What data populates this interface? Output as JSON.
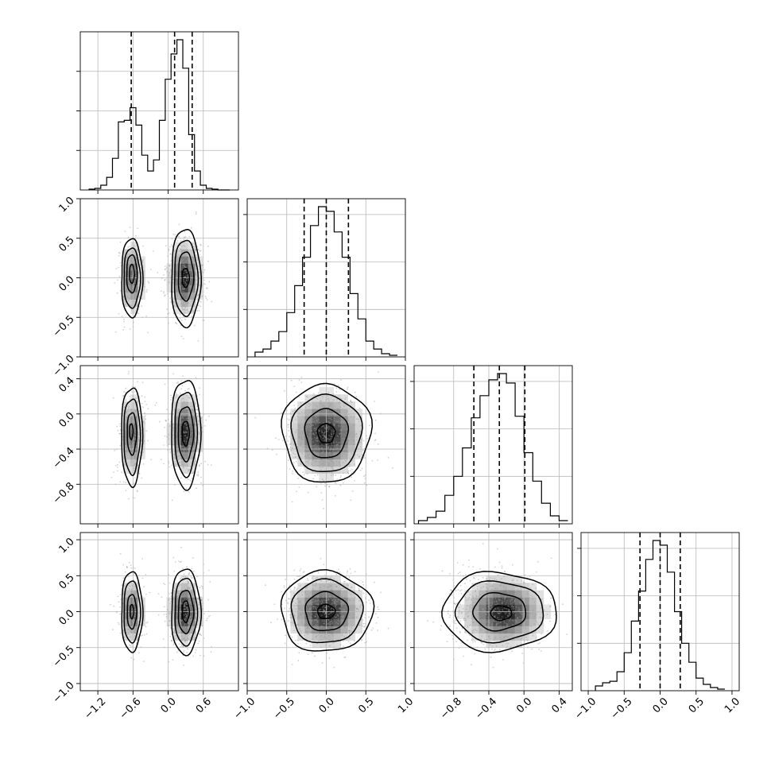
{
  "chart_data": {
    "type": "corner",
    "parameters": 4,
    "ranges": [
      [
        -1.5,
        1.2
      ],
      [
        -1.0,
        1.0
      ],
      [
        -1.25,
        0.55
      ],
      [
        -1.1,
        1.1
      ]
    ],
    "tick_values": [
      [
        -1.2,
        -0.6,
        0.0,
        0.6
      ],
      [
        -1.0,
        -0.5,
        0.0,
        0.5,
        1.0
      ],
      [
        -0.8,
        -0.4,
        0.0,
        0.4
      ],
      [
        -1.0,
        -0.5,
        0.0,
        0.5,
        1.0
      ]
    ],
    "tick_labels": [
      [
        "−1.2",
        "−0.6",
        "0.0",
        "0.6"
      ],
      [
        "−1.0",
        "−0.5",
        "0.0",
        "0.5",
        "1.0"
      ],
      [
        "−0.8",
        "−0.4",
        "0.0",
        "0.4"
      ],
      [
        "−1.0",
        "−0.5",
        "0.0",
        "0.5",
        "1.0"
      ]
    ],
    "histograms": [
      {
        "bin_edges": [
          -1.35,
          -1.25,
          -1.15,
          -1.05,
          -0.95,
          -0.85,
          -0.75,
          -0.65,
          -0.55,
          -0.45,
          -0.35,
          -0.25,
          -0.15,
          -0.05,
          0.05,
          0.15,
          0.25,
          0.35,
          0.45,
          0.55,
          0.65,
          0.75,
          0.85,
          0.95,
          1.05
        ],
        "counts": [
          0.005,
          0.01,
          0.03,
          0.08,
          0.2,
          0.43,
          0.44,
          0.52,
          0.41,
          0.22,
          0.12,
          0.19,
          0.44,
          0.7,
          0.86,
          0.95,
          0.77,
          0.35,
          0.12,
          0.03,
          0.01,
          0.005,
          0.0,
          0.0
        ],
        "quantiles": [
          -0.63,
          0.11,
          0.41
        ],
        "y_ticks": [
          0.25,
          0.5,
          0.75
        ]
      },
      {
        "bin_edges": [
          -0.9,
          -0.8,
          -0.7,
          -0.6,
          -0.5,
          -0.4,
          -0.3,
          -0.2,
          -0.1,
          0.0,
          0.1,
          0.2,
          0.3,
          0.4,
          0.5,
          0.6,
          0.7,
          0.8,
          0.9
        ],
        "counts": [
          0.03,
          0.05,
          0.1,
          0.16,
          0.28,
          0.45,
          0.63,
          0.83,
          0.95,
          0.92,
          0.79,
          0.63,
          0.4,
          0.24,
          0.1,
          0.05,
          0.02,
          0.01
        ],
        "quantiles": [
          -0.28,
          0.0,
          0.28
        ],
        "y_ticks": [
          0.3,
          0.6,
          0.9
        ]
      },
      {
        "bin_edges": [
          -1.2,
          -1.1,
          -1.0,
          -0.9,
          -0.8,
          -0.7,
          -0.6,
          -0.5,
          -0.4,
          -0.3,
          -0.2,
          -0.1,
          0.0,
          0.1,
          0.2,
          0.3,
          0.4,
          0.5
        ],
        "counts": [
          0.02,
          0.04,
          0.08,
          0.18,
          0.3,
          0.48,
          0.67,
          0.81,
          0.91,
          0.95,
          0.89,
          0.68,
          0.45,
          0.27,
          0.13,
          0.05,
          0.02
        ],
        "quantiles": [
          -0.57,
          -0.28,
          0.01
        ],
        "y_ticks": [
          0.3,
          0.6,
          0.9
        ]
      },
      {
        "bin_edges": [
          -0.9,
          -0.8,
          -0.7,
          -0.6,
          -0.5,
          -0.4,
          -0.3,
          -0.2,
          -0.1,
          0.0,
          0.1,
          0.2,
          0.3,
          0.4,
          0.5,
          0.6,
          0.7,
          0.8,
          0.9
        ],
        "counts": [
          0.03,
          0.05,
          0.06,
          0.12,
          0.24,
          0.44,
          0.63,
          0.83,
          0.95,
          0.92,
          0.75,
          0.5,
          0.3,
          0.18,
          0.08,
          0.04,
          0.02,
          0.01
        ],
        "quantiles": [
          -0.28,
          0.0,
          0.28
        ],
        "y_ticks": [
          0.3,
          0.6,
          0.9
        ]
      }
    ],
    "mixture": [
      [
        {
          "w": 0.36,
          "mu": -0.62,
          "sd": 0.09
        },
        {
          "w": 0.64,
          "mu": 0.29,
          "sd": 0.12
        }
      ],
      [
        {
          "w": 1,
          "mu": 0.0,
          "sd": 0.22
        }
      ],
      [
        {
          "w": 0.36,
          "mu": -0.25,
          "sd": 0.22
        },
        {
          "w": 0.64,
          "mu": -0.22,
          "sd": 0.22
        }
      ],
      [
        {
          "w": 1,
          "mu": 0.0,
          "sd": 0.22
        }
      ]
    ],
    "panels": [
      {
        "row": 1,
        "col": 0,
        "contours": [
          [
            [
              -0.62,
              0.0,
              0.18,
              0.5
            ],
            [
              -0.62,
              0.0,
              0.14,
              0.38
            ],
            [
              -0.62,
              0.05,
              0.09,
              0.24
            ],
            [
              -0.62,
              0.05,
              0.04,
              0.12
            ],
            [
              0.3,
              0.0,
              0.25,
              0.62
            ],
            [
              0.3,
              0.0,
              0.2,
              0.48
            ],
            [
              0.3,
              0.02,
              0.13,
              0.31
            ],
            [
              0.3,
              0.0,
              0.06,
              0.12
            ]
          ]
        ]
      },
      {
        "row": 2,
        "col": 0,
        "contours": [
          [
            [
              -0.62,
              -0.25,
              0.18,
              0.56
            ],
            [
              -0.62,
              -0.25,
              0.14,
              0.43
            ],
            [
              -0.62,
              -0.22,
              0.08,
              0.24
            ],
            [
              -0.63,
              -0.2,
              0.03,
              0.09
            ],
            [
              0.3,
              -0.22,
              0.25,
              0.62
            ],
            [
              0.3,
              -0.22,
              0.19,
              0.48
            ],
            [
              0.3,
              -0.22,
              0.13,
              0.31
            ],
            [
              0.3,
              -0.22,
              0.06,
              0.14
            ]
          ]
        ]
      },
      {
        "row": 2,
        "col": 1,
        "contours": [
          [
            [
              0.0,
              -0.22,
              0.56,
              0.56
            ],
            [
              0.0,
              -0.22,
              0.44,
              0.44
            ],
            [
              0.0,
              -0.22,
              0.27,
              0.28
            ],
            [
              0.0,
              -0.22,
              0.11,
              0.11
            ]
          ]
        ]
      },
      {
        "row": 3,
        "col": 0,
        "contours": [
          [
            [
              -0.62,
              0.0,
              0.18,
              0.56
            ],
            [
              -0.62,
              0.0,
              0.14,
              0.43
            ],
            [
              -0.62,
              0.0,
              0.08,
              0.24
            ],
            [
              -0.62,
              0.0,
              0.03,
              0.1
            ],
            [
              0.3,
              0.0,
              0.25,
              0.6
            ],
            [
              0.3,
              0.0,
              0.19,
              0.47
            ],
            [
              0.3,
              0.0,
              0.13,
              0.3
            ],
            [
              0.3,
              0.0,
              0.06,
              0.15
            ]
          ]
        ]
      },
      {
        "row": 3,
        "col": 1,
        "contours": [
          [
            [
              0.0,
              0.0,
              0.58,
              0.56
            ],
            [
              0.0,
              0.0,
              0.45,
              0.44
            ],
            [
              0.0,
              0.0,
              0.27,
              0.27
            ],
            [
              0.0,
              0.0,
              0.11,
              0.1
            ]
          ]
        ]
      },
      {
        "row": 3,
        "col": 2,
        "contours": [
          [
            [
              -0.28,
              0.0,
              0.65,
              0.55
            ],
            [
              -0.28,
              0.0,
              0.5,
              0.42
            ],
            [
              -0.28,
              0.0,
              0.3,
              0.26
            ],
            [
              -0.26,
              -0.02,
              0.12,
              0.1
            ]
          ]
        ]
      }
    ],
    "grid": true
  }
}
